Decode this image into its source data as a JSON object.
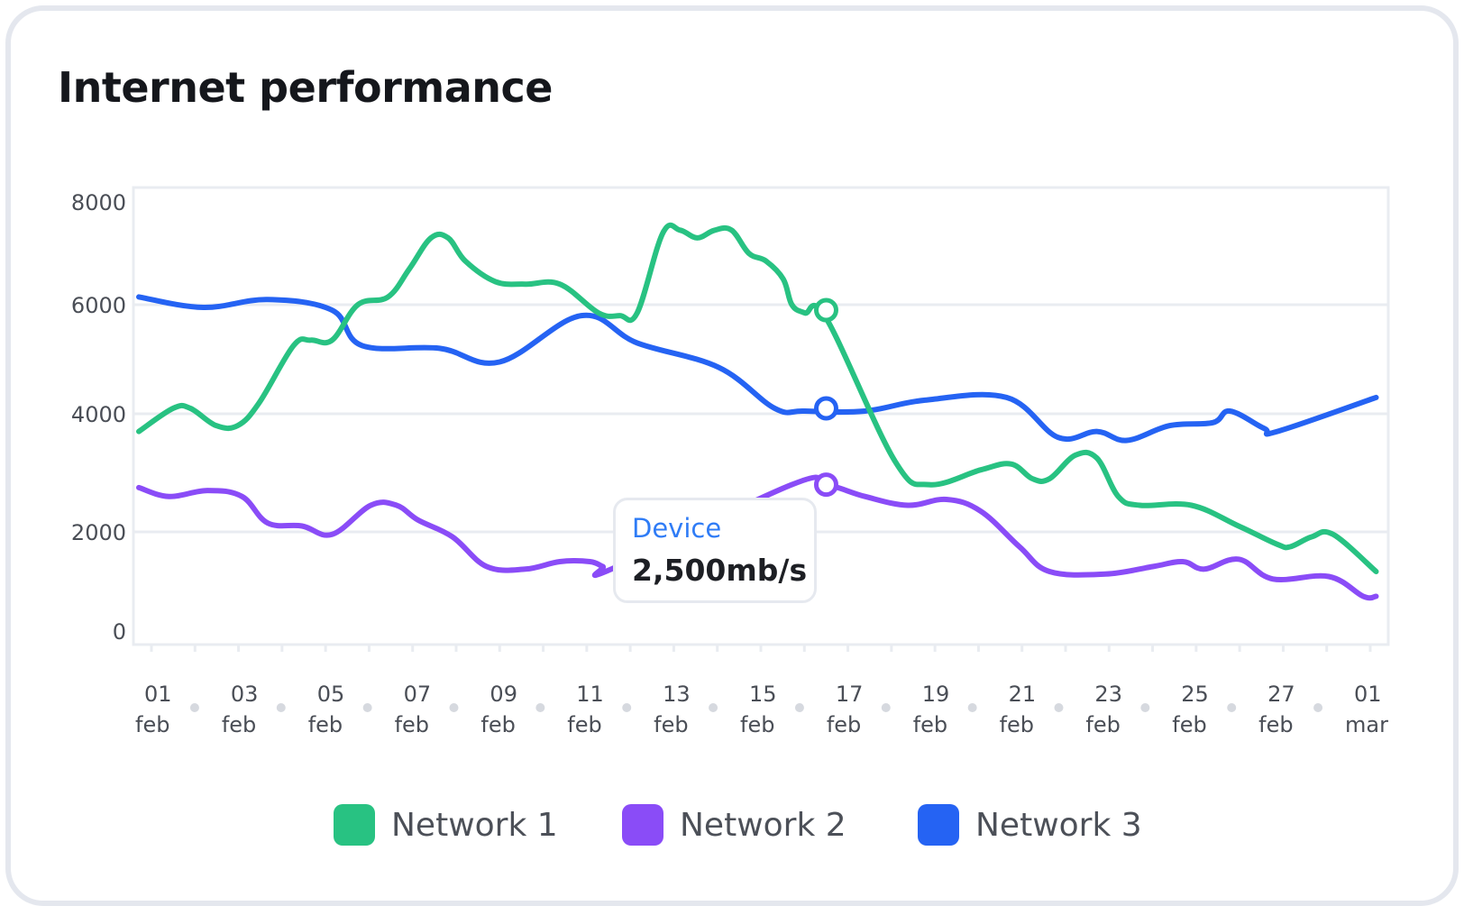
{
  "title": "Internet performance",
  "colors": {
    "network1": "#28c282",
    "network2": "#8a4cf7",
    "network3": "#2563f3",
    "grid": "#e9ecf1",
    "axis_text": "#4a4e56",
    "tooltip_label": "#2f7cf6"
  },
  "chart_data": {
    "type": "line",
    "title": "Internet performance",
    "xlabel": "",
    "ylabel": "",
    "ylim": [
      0,
      8000
    ],
    "yticks": [
      "8000",
      "6000",
      "4000",
      "2000",
      "0"
    ],
    "x_ticks": [
      {
        "day": "01",
        "month": "feb"
      },
      {
        "day": "03",
        "month": "feb"
      },
      {
        "day": "05",
        "month": "feb"
      },
      {
        "day": "07",
        "month": "feb"
      },
      {
        "day": "09",
        "month": "feb"
      },
      {
        "day": "11",
        "month": "feb"
      },
      {
        "day": "13",
        "month": "feb"
      },
      {
        "day": "15",
        "month": "feb"
      },
      {
        "day": "17",
        "month": "feb"
      },
      {
        "day": "19",
        "month": "feb"
      },
      {
        "day": "21",
        "month": "feb"
      },
      {
        "day": "23",
        "month": "feb"
      },
      {
        "day": "25",
        "month": "feb"
      },
      {
        "day": "27",
        "month": "feb"
      },
      {
        "day": "01",
        "month": "mar"
      }
    ],
    "x_range": [
      0,
      29
    ],
    "series": [
      {
        "name": "Network 1",
        "color": "#28c282",
        "points": [
          [
            0,
            3700
          ],
          [
            0.8,
            4100
          ],
          [
            1.2,
            4100
          ],
          [
            1.8,
            3800
          ],
          [
            2.3,
            3800
          ],
          [
            2.8,
            4200
          ],
          [
            3.6,
            5250
          ],
          [
            4,
            5350
          ],
          [
            4.5,
            5350
          ],
          [
            5.1,
            6000
          ],
          [
            5.8,
            6150
          ],
          [
            6.3,
            6700
          ],
          [
            6.8,
            7300
          ],
          [
            7.2,
            7300
          ],
          [
            7.6,
            6850
          ],
          [
            8.3,
            6450
          ],
          [
            9,
            6400
          ],
          [
            9.8,
            6400
          ],
          [
            10.7,
            5850
          ],
          [
            11.2,
            5800
          ],
          [
            11.6,
            5850
          ],
          [
            12.2,
            7400
          ],
          [
            12.6,
            7450
          ],
          [
            13,
            7300
          ],
          [
            13.4,
            7450
          ],
          [
            13.8,
            7450
          ],
          [
            14.2,
            7000
          ],
          [
            14.6,
            6850
          ],
          [
            15,
            6500
          ],
          [
            15.2,
            6000
          ],
          [
            15.5,
            5850
          ],
          [
            16,
            5750
          ],
          [
            17.6,
            3200
          ],
          [
            18.4,
            2800
          ],
          [
            19.6,
            3050
          ],
          [
            20.3,
            3150
          ],
          [
            20.8,
            2900
          ],
          [
            21.2,
            2900
          ],
          [
            21.8,
            3300
          ],
          [
            22.3,
            3250
          ],
          [
            22.8,
            2600
          ],
          [
            23.3,
            2450
          ],
          [
            24.5,
            2450
          ],
          [
            25.6,
            2100
          ],
          [
            26.5,
            1750
          ],
          [
            26.8,
            1700
          ],
          [
            27.3,
            1900
          ],
          [
            27.8,
            1950
          ],
          [
            28.8,
            1200
          ]
        ],
        "highlight": [
          16,
          5900
        ]
      },
      {
        "name": "Network 2",
        "color": "#8a4cf7",
        "points": [
          [
            0,
            2750
          ],
          [
            0.7,
            2600
          ],
          [
            1.6,
            2700
          ],
          [
            2.4,
            2600
          ],
          [
            3,
            2150
          ],
          [
            3.8,
            2100
          ],
          [
            4.5,
            1950
          ],
          [
            5.4,
            2450
          ],
          [
            6,
            2450
          ],
          [
            6.5,
            2200
          ],
          [
            7.3,
            1900
          ],
          [
            8.1,
            1300
          ],
          [
            9,
            1250
          ],
          [
            9.8,
            1400
          ],
          [
            10.5,
            1400
          ],
          [
            10.8,
            1300
          ],
          [
            11,
            1250
          ],
          [
            15.2,
            2800
          ],
          [
            16,
            2800
          ],
          [
            16.9,
            2600
          ],
          [
            17.9,
            2450
          ],
          [
            18.8,
            2550
          ],
          [
            19.6,
            2350
          ],
          [
            20.5,
            1700
          ],
          [
            21.2,
            1200
          ],
          [
            22.5,
            1150
          ],
          [
            23.6,
            1300
          ],
          [
            24.3,
            1400
          ],
          [
            24.8,
            1250
          ],
          [
            25.6,
            1450
          ],
          [
            26.4,
            1050
          ],
          [
            27.7,
            1100
          ],
          [
            28.5,
            700
          ],
          [
            28.8,
            700
          ]
        ],
        "highlight": [
          16,
          2800
        ]
      },
      {
        "name": "Network 3",
        "color": "#2563f3",
        "points": [
          [
            0,
            6150
          ],
          [
            1.5,
            5950
          ],
          [
            3,
            6100
          ],
          [
            4.5,
            5900
          ],
          [
            5.2,
            5250
          ],
          [
            7,
            5200
          ],
          [
            8.4,
            4950
          ],
          [
            10.3,
            5800
          ],
          [
            11.6,
            5300
          ],
          [
            13.5,
            4850
          ],
          [
            14.8,
            4100
          ],
          [
            15.5,
            4050
          ],
          [
            16.9,
            4050
          ],
          [
            18.3,
            4250
          ],
          [
            20.2,
            4300
          ],
          [
            21.4,
            3600
          ],
          [
            22.3,
            3700
          ],
          [
            23,
            3550
          ],
          [
            24,
            3800
          ],
          [
            25,
            3850
          ],
          [
            25.4,
            4050
          ],
          [
            26.2,
            3750
          ],
          [
            26.5,
            3700
          ],
          [
            28.8,
            4300
          ]
        ],
        "highlight": [
          16,
          4100
        ]
      }
    ],
    "legend": [
      "Network 1",
      "Network 2",
      "Network 3"
    ],
    "legend_position": "bottom-center"
  },
  "tooltip": {
    "label": "Device",
    "value": "2,500mb/s"
  }
}
